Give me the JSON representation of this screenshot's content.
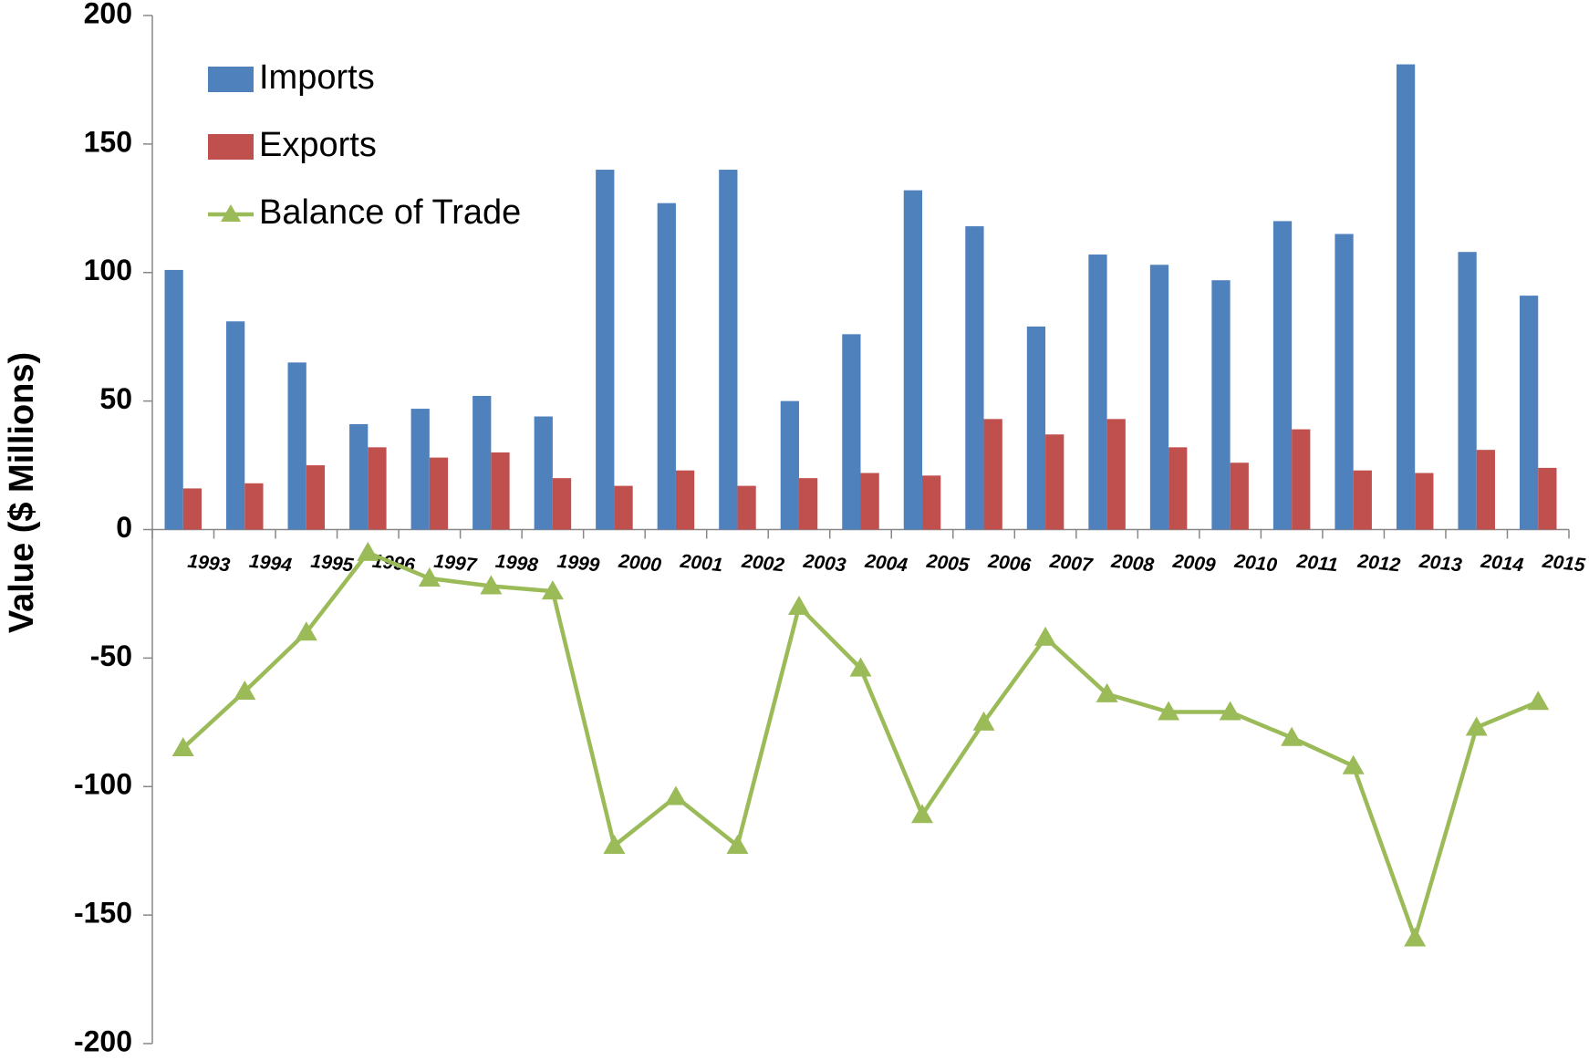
{
  "chart_data": {
    "type": "bar-line",
    "y_label": "Value ($ Millions)",
    "categories": [
      "1993",
      "1994",
      "1995",
      "1996",
      "1997",
      "1998",
      "1999",
      "2000",
      "2001",
      "2002",
      "2003",
      "2004",
      "2005",
      "2006",
      "2007",
      "2008",
      "2009",
      "2010",
      "2011",
      "2012",
      "2013",
      "2014",
      "2015"
    ],
    "series": [
      {
        "name": "Imports",
        "type": "bar",
        "color": "#4f81bd",
        "values": [
          101,
          81,
          65,
          41,
          47,
          52,
          44,
          140,
          127,
          140,
          50,
          76,
          132,
          118,
          79,
          107,
          103,
          97,
          120,
          115,
          181,
          108,
          91
        ]
      },
      {
        "name": "Exports",
        "type": "bar",
        "color": "#c0504d",
        "values": [
          16,
          18,
          25,
          32,
          28,
          30,
          20,
          17,
          23,
          17,
          20,
          22,
          21,
          43,
          37,
          43,
          32,
          26,
          39,
          23,
          22,
          31,
          24
        ]
      },
      {
        "name": "Balance of Trade",
        "type": "line",
        "color": "#9bbb59",
        "values": [
          -85,
          -63,
          -40,
          -9,
          -19,
          -22,
          -24,
          -123,
          -104,
          -123,
          -30,
          -54,
          -111,
          -75,
          -42,
          -64,
          -71,
          -71,
          -81,
          -92,
          -159,
          -77,
          -67
        ]
      }
    ],
    "ylim": [
      -200,
      200
    ],
    "yticks": [
      -200,
      -150,
      -100,
      -50,
      0,
      50,
      100,
      150,
      200
    ],
    "legend": "upper-left"
  }
}
